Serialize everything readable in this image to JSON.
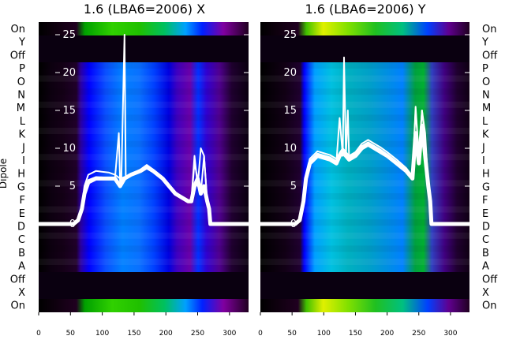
{
  "figure": {
    "ylabel": "Dipole"
  },
  "row_labels": {
    "left": [
      "On",
      "Y",
      "Off",
      "P",
      "O",
      "N",
      "M",
      "L",
      "K",
      "J",
      "I",
      "H",
      "G",
      "F",
      "E",
      "D",
      "C",
      "B",
      "A",
      "Off",
      "X",
      "On"
    ],
    "right": [
      "On",
      "Y",
      "Off",
      "P",
      "O",
      "N",
      "M",
      "L",
      "K",
      "J",
      "I",
      "H",
      "G",
      "F",
      "E",
      "D",
      "C",
      "B",
      "A",
      "Off",
      "X",
      "On"
    ]
  },
  "chart_data": [
    {
      "type": "heatmap",
      "title": "1.6 (LBA6=2006) X",
      "xlabel": "",
      "ylabel": "Dipole",
      "xlim": [
        0,
        330
      ],
      "ylim": [
        -5,
        27
      ],
      "xticks": [
        0,
        50,
        100,
        150,
        200,
        250,
        300
      ],
      "yticks": [
        0,
        5,
        10,
        15,
        20,
        25
      ],
      "grid": false,
      "colormap": "nipy_spectral",
      "series": [
        {
          "name": "",
          "x": [
            0,
            55,
            62,
            68,
            72,
            78,
            90,
            110,
            120,
            128,
            135,
            145,
            160,
            170,
            180,
            195,
            205,
            215,
            235,
            240,
            245,
            250,
            255,
            260,
            265,
            268,
            270,
            330
          ],
          "y": [
            0,
            0,
            0.5,
            2,
            4,
            5.5,
            6,
            6,
            6,
            5,
            6,
            6.5,
            7,
            7.5,
            7,
            6,
            5,
            4,
            3,
            3,
            5,
            6,
            4,
            5,
            3,
            2,
            0,
            0
          ]
        },
        {
          "name": "",
          "x": [
            0,
            55,
            62,
            68,
            72,
            78,
            90,
            110,
            120,
            128,
            135,
            145,
            160,
            170,
            180,
            195,
            205,
            215,
            235,
            240,
            245,
            250,
            255,
            260,
            265,
            268,
            270,
            330
          ],
          "y": [
            0,
            0,
            0.6,
            2.5,
            5,
            6.5,
            7,
            6.8,
            6.5,
            6,
            6.2,
            6.6,
            7.2,
            7.8,
            7.2,
            6.2,
            5.2,
            4.2,
            3.1,
            3.2,
            8,
            6,
            4,
            9,
            3,
            2,
            0,
            0
          ]
        },
        {
          "name": "",
          "x": [
            0,
            55,
            62,
            68,
            72,
            78,
            90,
            110,
            120,
            126,
            128,
            130,
            135,
            137,
            140,
            145,
            160,
            170,
            180,
            195,
            205,
            215,
            235,
            240,
            245,
            250,
            255,
            260,
            265,
            268,
            270,
            330
          ],
          "y": [
            0,
            0,
            0.5,
            2.2,
            4.5,
            5.8,
            6.2,
            6.1,
            6.0,
            12,
            5.5,
            6,
            25,
            6,
            6.2,
            6.5,
            7.1,
            7.6,
            7.1,
            6.1,
            5.1,
            4.1,
            3.0,
            3.1,
            9,
            5,
            10,
            9,
            3,
            2,
            0,
            0
          ]
        }
      ]
    },
    {
      "type": "heatmap",
      "title": "1.6 (LBA6=2006) Y",
      "xlabel": "",
      "ylabel": "",
      "xlim": [
        0,
        330
      ],
      "ylim": [
        -5,
        27
      ],
      "xticks": [
        0,
        50,
        100,
        150,
        200,
        250,
        300
      ],
      "yticks": [
        0,
        5,
        10,
        15,
        20,
        25
      ],
      "grid": false,
      "colormap": "nipy_spectral",
      "series": [
        {
          "name": "",
          "x": [
            0,
            55,
            62,
            68,
            72,
            78,
            90,
            110,
            120,
            125,
            130,
            135,
            140,
            150,
            160,
            170,
            180,
            190,
            200,
            215,
            230,
            240,
            245,
            250,
            255,
            260,
            265,
            268,
            270,
            330
          ],
          "y": [
            0,
            0,
            0.5,
            3,
            6,
            8,
            9,
            8.5,
            8,
            9,
            9.5,
            9,
            8.5,
            9,
            10,
            10.5,
            10,
            9.5,
            9,
            8,
            7,
            6,
            12,
            8,
            13,
            9,
            5,
            3,
            0,
            0
          ]
        },
        {
          "name": "",
          "x": [
            0,
            55,
            62,
            68,
            72,
            78,
            90,
            110,
            120,
            125,
            130,
            135,
            140,
            150,
            160,
            170,
            180,
            190,
            200,
            215,
            230,
            240,
            245,
            250,
            255,
            260,
            265,
            268,
            270,
            330
          ],
          "y": [
            0,
            0,
            0.6,
            3.3,
            6.4,
            8.6,
            9.6,
            9.1,
            8.6,
            9.4,
            10,
            9.5,
            9,
            9.5,
            10.6,
            11.1,
            10.6,
            10.1,
            9.5,
            8.5,
            7.4,
            6.3,
            15,
            9,
            15,
            11,
            5.5,
            3,
            0,
            0
          ]
        },
        {
          "name": "",
          "x": [
            0,
            55,
            62,
            68,
            72,
            78,
            90,
            110,
            120,
            125,
            130,
            132,
            135,
            138,
            140,
            150,
            160,
            170,
            180,
            190,
            200,
            215,
            230,
            240,
            245,
            250,
            255,
            260,
            265,
            268,
            270,
            330
          ],
          "y": [
            0,
            0,
            0.5,
            3.1,
            6.2,
            8.3,
            9.3,
            8.8,
            8.3,
            14,
            9,
            22,
            9,
            15,
            8.8,
            9.3,
            10.3,
            10.8,
            10.3,
            9.8,
            9.2,
            8.2,
            7.2,
            6.1,
            15.5,
            9,
            15,
            12,
            5,
            3,
            0,
            0
          ]
        }
      ]
    }
  ]
}
